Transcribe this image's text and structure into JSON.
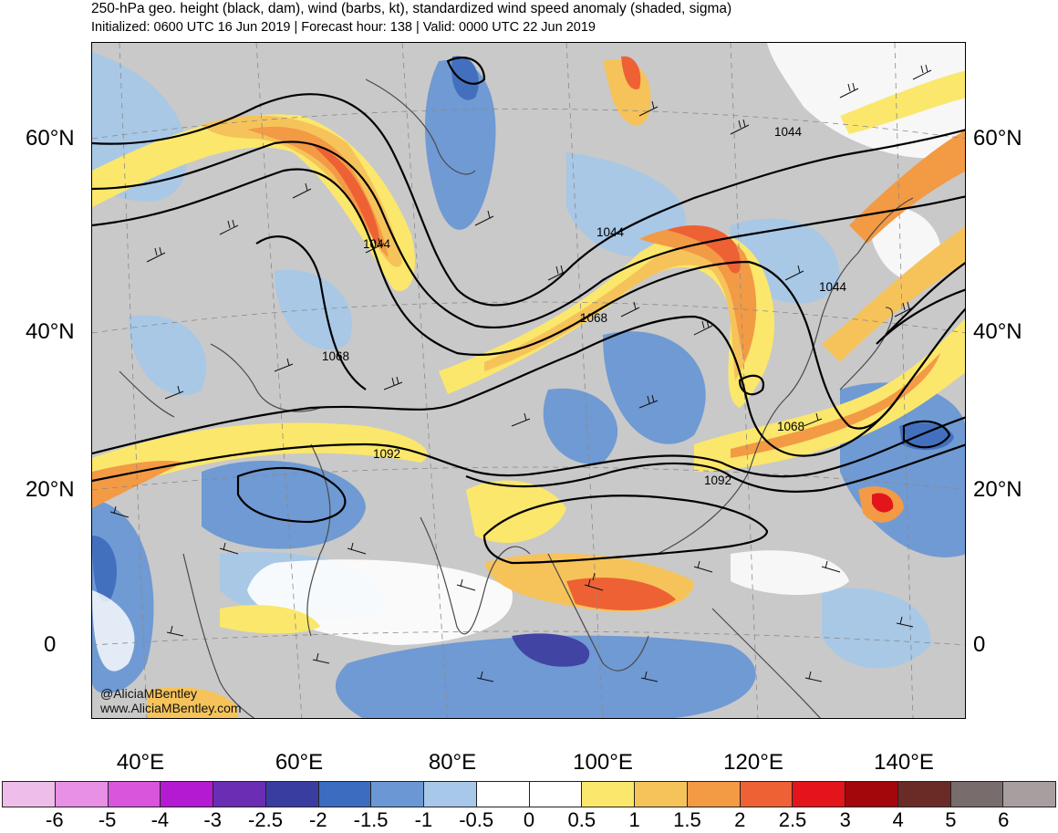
{
  "header": {
    "title": "250-hPa geo. height (black, dam), wind (barbs, kt), standardized wind speed anomaly (shaded, sigma)",
    "subtitle": "Initialized: 0600 UTC 16 Jun 2019 | Forecast hour: 138 | Valid: 0000 UTC 22 Jun 2019"
  },
  "map": {
    "lat_labels": [
      "60°N",
      "40°N",
      "20°N",
      "0"
    ],
    "lon_labels": [
      "40°E",
      "60°E",
      "80°E",
      "100°E",
      "120°E",
      "140°E"
    ],
    "contour_labels": [
      "1044",
      "1044",
      "1044",
      "1044",
      "1068",
      "1068",
      "1068",
      "1092",
      "1092"
    ],
    "land_color": "#c9c9c9",
    "ocean_color": "#ffffff"
  },
  "credits": {
    "handle": "@AliciaMBentley",
    "website": "www.AliciaMBentley.com"
  },
  "colorbar": {
    "labels": [
      "-6",
      "-5",
      "-4",
      "-3",
      "-2.5",
      "-2",
      "-1.5",
      "-1",
      "-0.5",
      "0",
      "0.5",
      "1",
      "1.5",
      "2",
      "2.5",
      "3",
      "4",
      "5",
      "6"
    ],
    "colors": [
      "#eebdea",
      "#e88fe6",
      "#d955dc",
      "#b51ad3",
      "#6a2db3",
      "#3a3da0",
      "#3b6cbf",
      "#6b98d4",
      "#a7c8e8",
      "#ffffff",
      "#ffffff",
      "#fbe76b",
      "#f6c35a",
      "#f39a45",
      "#ee6135",
      "#e3151b",
      "#a3070b",
      "#6a2b27",
      "#786c6c",
      "#a79f9f"
    ]
  }
}
